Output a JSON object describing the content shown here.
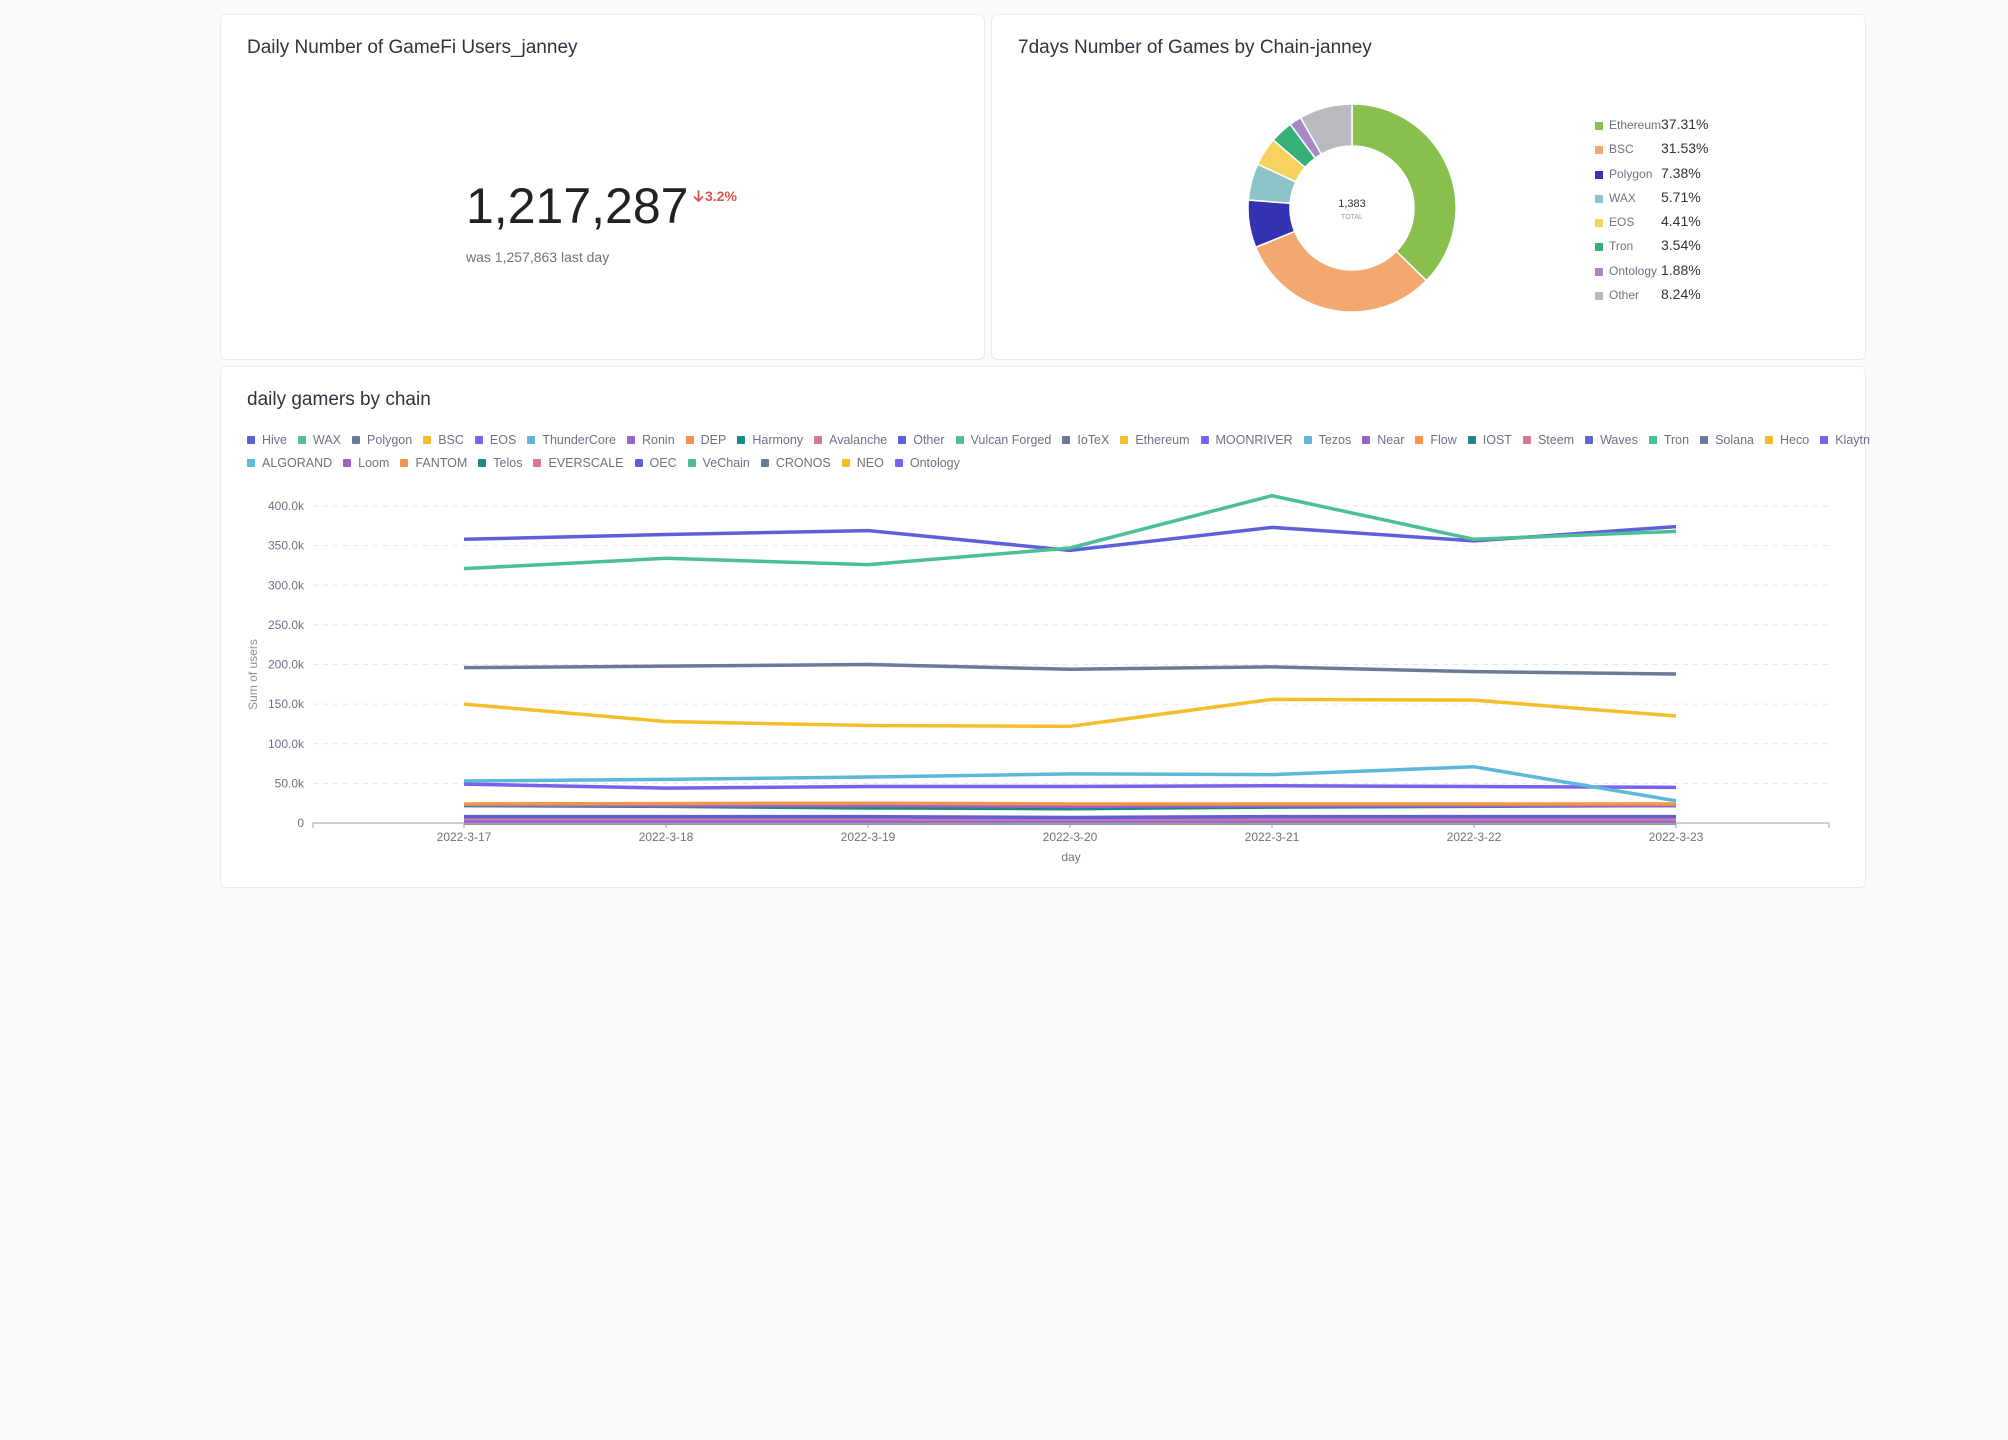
{
  "users_card": {
    "title": "Daily Number of GameFi Users_janney",
    "value": "1,217,287",
    "change_icon": "arrow-down-icon",
    "change": "3.2%",
    "compare_text": "was 1,257,863 last day",
    "change_color": "#e05252"
  },
  "pie_card": {
    "title": "7days Number of Games by Chain-janney",
    "total": "1,383",
    "total_label": "TOTAL"
  },
  "lines_card": {
    "title": "daily gamers by chain"
  },
  "chart_data": [
    {
      "type": "pie",
      "title": "7days Number of Games by Chain-janney",
      "categories": [
        "Ethereum",
        "BSC",
        "Polygon",
        "WAX",
        "EOS",
        "Tron",
        "Ontology",
        "Other"
      ],
      "values": [
        37.31,
        31.53,
        7.38,
        5.71,
        4.41,
        3.54,
        1.88,
        8.24
      ],
      "labels": [
        "37.31%",
        "31.53%",
        "7.38%",
        "5.71%",
        "4.41%",
        "3.54%",
        "1.88%",
        "8.24%"
      ],
      "colors": [
        "#88bf4d",
        "#f2a86f",
        "#3434b3",
        "#8cc3c6",
        "#f7d25e",
        "#37b077",
        "#a989c5",
        "#b8bac0"
      ],
      "total": "1,383",
      "legend": "right"
    },
    {
      "type": "line",
      "title": "daily gamers by chain",
      "xlabel": "day",
      "ylabel": "Sum of users",
      "x": [
        "2022-3-17",
        "2022-3-18",
        "2022-3-19",
        "2022-3-20",
        "2022-3-21",
        "2022-3-22",
        "2022-3-23"
      ],
      "ylim": [
        0,
        400000
      ],
      "yticks": [
        "0",
        "50.0k",
        "100.0k",
        "150.0k",
        "200.0k",
        "250.0k",
        "300.0k",
        "350.0k",
        "400.0k"
      ],
      "grid": true,
      "legend": "top",
      "series": [
        {
          "name": "Hive",
          "color": "#5d5fdb",
          "values": [
            358000,
            364000,
            369000,
            344000,
            373000,
            356000,
            374000
          ]
        },
        {
          "name": "WAX",
          "color": "#4cbf96",
          "values": [
            321000,
            334000,
            326000,
            347000,
            413000,
            358000,
            368000
          ]
        },
        {
          "name": "Polygon",
          "color": "#6b7a99",
          "values": [
            196000,
            198000,
            200000,
            194000,
            197000,
            191000,
            188000
          ]
        },
        {
          "name": "BSC",
          "color": "#f4bd2a",
          "values": [
            150000,
            128000,
            123000,
            122000,
            156000,
            155000,
            135000
          ]
        },
        {
          "name": "EOS",
          "color": "#7b61f0",
          "values": [
            49000,
            44000,
            46000,
            46000,
            47000,
            46000,
            45000
          ]
        },
        {
          "name": "ThunderCore",
          "color": "#5cb8d8",
          "values": [
            53000,
            55000,
            58000,
            62000,
            61000,
            71000,
            28000
          ]
        },
        {
          "name": "Ronin",
          "color": "#9b62c8",
          "values": [
            23000,
            22000,
            22000,
            21000,
            22000,
            22000,
            22000
          ]
        },
        {
          "name": "DEP",
          "color": "#f2944c",
          "values": [
            24000,
            24500,
            25000,
            24000,
            24000,
            24000,
            24000
          ]
        },
        {
          "name": "Harmony",
          "color": "#1a8a84",
          "values": [
            22000,
            21000,
            19000,
            18000,
            20000,
            21000,
            22000
          ]
        },
        {
          "name": "Avalanche",
          "color": "#d4779a",
          "values": [
            5000,
            5000,
            5000,
            4500,
            4500,
            4500,
            4500
          ]
        },
        {
          "name": "Other",
          "color": "#5d5fdb",
          "values": [
            8000,
            8000,
            8000,
            7000,
            8000,
            8000,
            8000
          ]
        },
        {
          "name": "Vulcan Forged",
          "color": "#4cbf96",
          "values": [
            2000,
            2000,
            2000,
            2000,
            2000,
            2000,
            2000
          ]
        },
        {
          "name": "IoTeX",
          "color": "#6b7a99",
          "values": [
            2000,
            2000,
            2000,
            2000,
            2000,
            2000,
            2000
          ]
        },
        {
          "name": "Ethereum",
          "color": "#f4bd2a",
          "values": [
            1500,
            1500,
            1500,
            1500,
            1500,
            1500,
            1500
          ]
        },
        {
          "name": "MOONRIVER",
          "color": "#7b61f0",
          "values": [
            3000,
            3000,
            3000,
            3000,
            3000,
            3000,
            3000
          ]
        },
        {
          "name": "Tezos",
          "color": "#5cb8d8",
          "values": [
            1000,
            1000,
            1000,
            1000,
            1000,
            1000,
            1000
          ]
        },
        {
          "name": "Near",
          "color": "#9b62c8",
          "values": [
            1000,
            1000,
            1000,
            1000,
            1000,
            1000,
            1000
          ]
        },
        {
          "name": "Flow",
          "color": "#f2944c",
          "values": [
            1000,
            1000,
            1000,
            1000,
            1000,
            1000,
            1000
          ]
        },
        {
          "name": "IOST",
          "color": "#1a8a84",
          "values": [
            1000,
            1000,
            1000,
            1000,
            1000,
            1000,
            1000
          ]
        },
        {
          "name": "Steem",
          "color": "#d4779a",
          "values": [
            1000,
            1000,
            1000,
            1000,
            1000,
            1000,
            1000
          ]
        },
        {
          "name": "Waves",
          "color": "#6068d0",
          "values": [
            500,
            500,
            500,
            500,
            500,
            500,
            500
          ]
        },
        {
          "name": "Tron",
          "color": "#4cbf96",
          "values": [
            500,
            500,
            500,
            500,
            500,
            500,
            500
          ]
        },
        {
          "name": "Solana",
          "color": "#6b7a99",
          "values": [
            500,
            500,
            500,
            500,
            500,
            500,
            500
          ]
        },
        {
          "name": "Heco",
          "color": "#f4bd2a",
          "values": [
            500,
            500,
            500,
            500,
            500,
            500,
            500
          ]
        },
        {
          "name": "Klaytn",
          "color": "#7b61f0",
          "values": [
            500,
            500,
            500,
            500,
            500,
            500,
            500
          ]
        },
        {
          "name": "ALGORAND",
          "color": "#5cb8d8",
          "values": [
            300,
            300,
            300,
            300,
            300,
            300,
            300
          ]
        },
        {
          "name": "Loom",
          "color": "#9b62c8",
          "values": [
            300,
            300,
            300,
            300,
            300,
            300,
            300
          ]
        },
        {
          "name": "FANTOM",
          "color": "#f2944c",
          "values": [
            300,
            300,
            300,
            300,
            300,
            300,
            300
          ]
        },
        {
          "name": "Telos",
          "color": "#1a8a84",
          "values": [
            300,
            300,
            300,
            300,
            300,
            300,
            300
          ]
        },
        {
          "name": "EVERSCALE",
          "color": "#d4779a",
          "values": [
            200,
            200,
            200,
            200,
            200,
            200,
            200
          ]
        },
        {
          "name": "OEC",
          "color": "#5d5fdb",
          "values": [
            200,
            200,
            200,
            200,
            200,
            200,
            200
          ]
        },
        {
          "name": "VeChain",
          "color": "#4cbf96",
          "values": [
            200,
            200,
            200,
            200,
            200,
            200,
            200
          ]
        },
        {
          "name": "CRONOS",
          "color": "#6b7a99",
          "values": [
            200,
            200,
            200,
            200,
            200,
            200,
            200
          ]
        },
        {
          "name": "NEO",
          "color": "#f4bd2a",
          "values": [
            100,
            100,
            100,
            100,
            100,
            100,
            100
          ]
        },
        {
          "name": "Ontology",
          "color": "#7b61f0",
          "values": [
            4000,
            4000,
            4000,
            4000,
            4000,
            4000,
            4000
          ]
        }
      ]
    }
  ]
}
